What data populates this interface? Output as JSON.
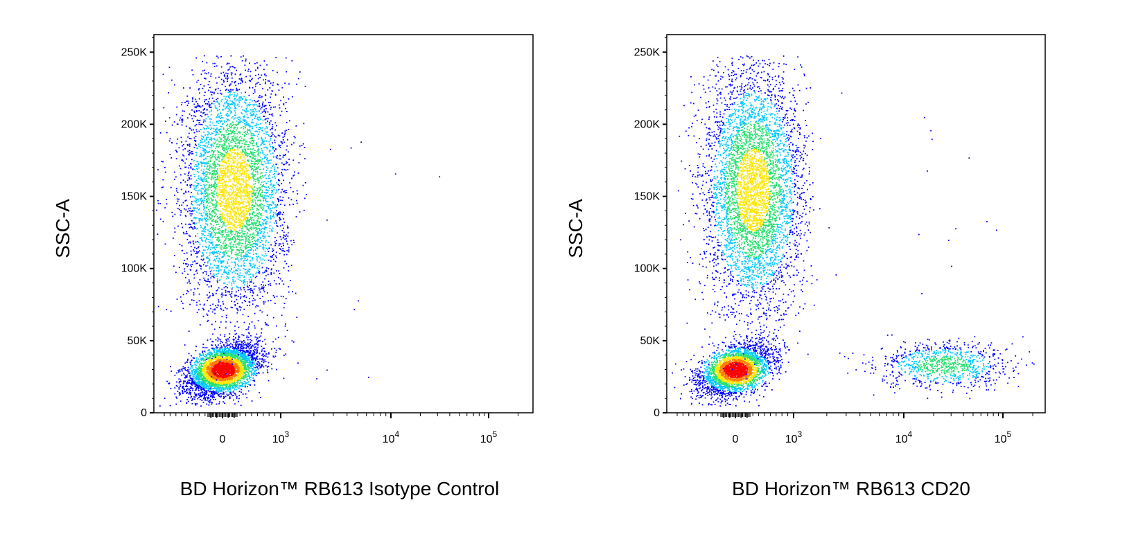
{
  "chart_data": [
    {
      "type": "scatter",
      "subtype": "flow-cytometry-density-dot-plot",
      "xlabel": "BD Horizon™ RB613 Isotype Control",
      "ylabel": "SSC-A",
      "x_scale": "biexponential",
      "y_scale": "linear",
      "ylim": [
        0,
        262144
      ],
      "y_ticks": [
        0,
        50000,
        100000,
        150000,
        200000,
        250000
      ],
      "y_tick_labels": [
        "0",
        "50K",
        "100K",
        "150K",
        "200K",
        "250K"
      ],
      "x_ticks": [
        0,
        1000,
        10000,
        100000
      ],
      "x_tick_labels": [
        {
          "base": "0",
          "exp": ""
        },
        {
          "base": "10",
          "exp": "3"
        },
        {
          "base": "10",
          "exp": "4"
        },
        {
          "base": "10",
          "exp": "5"
        }
      ],
      "density_colors": [
        "#0000ff",
        "#00c8ff",
        "#28e070",
        "#ffe600",
        "#ff7a00",
        "#ff0000"
      ],
      "grid": false,
      "populations": [
        {
          "description": "lymphocytes",
          "x_center": 0,
          "x_spread": 300,
          "y_center": 30000,
          "y_spread": 8000,
          "relative_size": 0.45
        },
        {
          "description": "myeloid/granulocytes",
          "x_center": 200,
          "x_spread": 450,
          "y_center": 155000,
          "y_spread": 42000,
          "relative_size": 0.55
        }
      ],
      "outlier_points": [
        {
          "x": 2800,
          "y": 183000
        },
        {
          "x": 4300,
          "y": 184000
        },
        {
          "x": 5300,
          "y": 188000
        },
        {
          "x": 11000,
          "y": 166000
        },
        {
          "x": 31000,
          "y": 164000
        },
        {
          "x": 4600,
          "y": 72000
        },
        {
          "x": 5000,
          "y": 78000
        },
        {
          "x": 6200,
          "y": 25000
        },
        {
          "x": 2600,
          "y": 134000
        },
        {
          "x": 2100,
          "y": 24000
        },
        {
          "x": 2600,
          "y": 30000
        }
      ]
    },
    {
      "type": "scatter",
      "subtype": "flow-cytometry-density-dot-plot",
      "xlabel": "BD Horizon™ RB613 CD20",
      "ylabel": "SSC-A",
      "x_scale": "biexponential",
      "y_scale": "linear",
      "ylim": [
        0,
        262144
      ],
      "y_ticks": [
        0,
        50000,
        100000,
        150000,
        200000,
        250000
      ],
      "y_tick_labels": [
        "0",
        "50K",
        "100K",
        "150K",
        "200K",
        "250K"
      ],
      "x_ticks": [
        0,
        1000,
        10000,
        100000
      ],
      "x_tick_labels": [
        {
          "base": "0",
          "exp": ""
        },
        {
          "base": "10",
          "exp": "3"
        },
        {
          "base": "10",
          "exp": "4"
        },
        {
          "base": "10",
          "exp": "5"
        }
      ],
      "density_colors": [
        "#0000ff",
        "#00c8ff",
        "#28e070",
        "#ffe600",
        "#ff7a00",
        "#ff0000"
      ],
      "grid": false,
      "populations": [
        {
          "description": "CD20- lymphocytes",
          "x_center": 0,
          "x_spread": 300,
          "y_center": 30000,
          "y_spread": 8000,
          "relative_size": 0.35
        },
        {
          "description": "myeloid/granulocytes",
          "x_center": 300,
          "x_spread": 420,
          "y_center": 155000,
          "y_spread": 42000,
          "relative_size": 0.55
        },
        {
          "description": "CD20+ B cells",
          "x_center": 25000,
          "x_spread_log": 0.32,
          "y_center": 33000,
          "y_spread": 8000,
          "relative_size": 0.1
        }
      ],
      "outlier_points": [
        {
          "x": 16000,
          "y": 205000
        },
        {
          "x": 18500,
          "y": 196000
        },
        {
          "x": 19000,
          "y": 190000
        },
        {
          "x": 17000,
          "y": 168000
        },
        {
          "x": 45000,
          "y": 177000
        },
        {
          "x": 68000,
          "y": 133000
        },
        {
          "x": 33000,
          "y": 128000
        },
        {
          "x": 28000,
          "y": 120000
        },
        {
          "x": 30000,
          "y": 102000
        },
        {
          "x": 85000,
          "y": 127000
        },
        {
          "x": 14000,
          "y": 124000
        },
        {
          "x": 2400,
          "y": 96000
        },
        {
          "x": 2700,
          "y": 222000
        },
        {
          "x": 15000,
          "y": 83000
        }
      ]
    }
  ]
}
